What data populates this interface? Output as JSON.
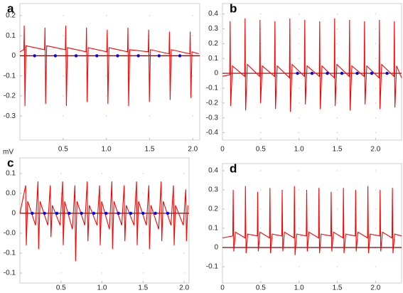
{
  "chart_data": [
    {
      "type": "line",
      "panel": "a",
      "xlim": [
        0,
        2.08
      ],
      "ylim": [
        -0.42,
        0.26
      ],
      "xticks": [
        0.5,
        {
          "value": 1,
          "label": "1.0"
        },
        1.5,
        {
          "value": 2,
          "label": "2.0"
        }
      ],
      "yticks": [
        0.2,
        0.1,
        0,
        -0.1,
        -0.2,
        -0.3
      ],
      "series": [
        {
          "style": "line",
          "color": "#ff0000",
          "x": [
            0,
            0.045,
            0.05,
            0.058,
            0.07,
            0.285,
            0.29,
            0.298,
            0.31,
            0.525,
            0.53,
            0.538,
            0.55,
            0.765,
            0.77,
            0.778,
            0.79,
            1.005,
            1.01,
            1.018,
            1.03,
            1.245,
            1.25,
            1.258,
            1.27,
            1.485,
            1.49,
            1.498,
            1.51,
            1.725,
            1.73,
            1.738,
            1.75,
            1.965,
            1.97,
            1.978,
            1.99,
            2.07
          ],
          "values": [
            0.02,
            0.03,
            0.15,
            -0.25,
            0.05,
            0.03,
            0.14,
            -0.24,
            0.05,
            0.03,
            0.15,
            -0.25,
            0.04,
            0.02,
            0.14,
            -0.23,
            0.04,
            0.02,
            0.13,
            -0.24,
            0.04,
            0.02,
            0.14,
            -0.25,
            0.03,
            0.02,
            0.13,
            -0.23,
            0.03,
            0.01,
            0.12,
            -0.22,
            0.03,
            0.01,
            0.12,
            -0.21,
            0.02,
            0.01
          ]
        },
        {
          "style": "dots",
          "color": "#0000ff",
          "x": [
            0.17,
            0.41,
            0.65,
            0.89,
            1.13,
            1.37,
            1.61,
            1.85
          ],
          "values": [
            0,
            0,
            0,
            0,
            0,
            0,
            0,
            0
          ]
        }
      ]
    },
    {
      "type": "line",
      "panel": "b",
      "xlim": [
        0,
        2.34
      ],
      "ylim": [
        -0.45,
        0.47
      ],
      "xticks": [
        0,
        0.5,
        {
          "value": 1,
          "label": "1.0"
        },
        1.5,
        {
          "value": 2,
          "label": "2.0"
        }
      ],
      "yticks": [
        0.4,
        0.3,
        0.2,
        0.1,
        0,
        -0.1,
        -0.2,
        -0.3,
        -0.4
      ],
      "series": [
        {
          "style": "line",
          "color": "#ff0000",
          "x": [
            0,
            0.095,
            0.1,
            0.108,
            0.13,
            0.29,
            0.295,
            0.303,
            0.325,
            0.485,
            0.49,
            0.498,
            0.52,
            0.68,
            0.685,
            0.693,
            0.715,
            0.875,
            0.88,
            0.888,
            0.91,
            1.07,
            1.075,
            1.083,
            1.105,
            1.265,
            1.27,
            1.278,
            1.3,
            1.46,
            1.465,
            1.473,
            1.495,
            1.655,
            1.66,
            1.668,
            1.69,
            1.85,
            1.855,
            1.863,
            1.885,
            2.045,
            2.05,
            2.058,
            2.08,
            2.24,
            2.245,
            2.253,
            2.275,
            2.34
          ],
          "values": [
            -0.02,
            -0.01,
            0.35,
            -0.22,
            0.05,
            -0.02,
            0.37,
            -0.25,
            0.06,
            -0.02,
            0.36,
            -0.2,
            0.05,
            -0.02,
            0.35,
            -0.24,
            0.05,
            -0.03,
            0.37,
            -0.26,
            0.06,
            -0.02,
            0.36,
            -0.21,
            0.05,
            -0.02,
            0.35,
            -0.24,
            0.05,
            -0.03,
            0.37,
            -0.22,
            0.06,
            -0.02,
            0.36,
            -0.25,
            0.05,
            -0.02,
            0.35,
            -0.21,
            0.05,
            -0.03,
            0.36,
            -0.24,
            0.06,
            -0.02,
            0.35,
            -0.23,
            0.05,
            -0.03
          ]
        },
        {
          "style": "dots",
          "color": "#0000ff",
          "x": [
            0.98,
            1.17,
            1.37,
            1.56,
            1.76,
            1.95,
            2.15
          ],
          "values": [
            0,
            0,
            0,
            0,
            0,
            0,
            0
          ]
        }
      ]
    },
    {
      "type": "line",
      "panel": "c",
      "y_label": "mV",
      "xlim": [
        0,
        2.06
      ],
      "ylim": [
        -0.175,
        0.139
      ],
      "xticks": [
        0.5,
        {
          "value": 1,
          "label": "1.0"
        },
        1.5,
        {
          "value": 2,
          "label": "2.0"
        }
      ],
      "yticks": [
        0.1,
        {
          "value": 0.05,
          "label": "0.0"
        },
        0,
        {
          "value": -0.05,
          "label": "-0.0"
        },
        -0.1,
        {
          "value": -0.15,
          "label": "-0.1"
        }
      ],
      "series": [
        {
          "style": "line",
          "color": "#ff0000",
          "x": [
            0,
            0.07,
            0.078,
            0.095,
            0.19,
            0.22,
            0.228,
            0.245,
            0.34,
            0.37,
            0.378,
            0.395,
            0.49,
            0.52,
            0.528,
            0.545,
            0.64,
            0.67,
            0.678,
            0.695,
            0.79,
            0.82,
            0.828,
            0.845,
            0.94,
            0.97,
            0.978,
            0.995,
            1.09,
            1.12,
            1.128,
            1.145,
            1.24,
            1.27,
            1.278,
            1.295,
            1.39,
            1.42,
            1.428,
            1.445,
            1.54,
            1.57,
            1.578,
            1.595,
            1.69,
            1.72,
            1.728,
            1.745,
            1.84,
            1.87,
            1.878,
            1.895,
            1.99,
            2.02,
            2.028,
            2.045
          ],
          "values": [
            0.0,
            0.07,
            -0.08,
            0.03,
            -0.03,
            0.08,
            -0.09,
            0.03,
            -0.03,
            0.07,
            -0.06,
            0.02,
            -0.03,
            0.08,
            -0.08,
            0.03,
            -0.04,
            0.07,
            -0.12,
            0.03,
            -0.03,
            0.08,
            -0.07,
            0.02,
            -0.03,
            0.07,
            -0.08,
            0.03,
            -0.04,
            0.08,
            -0.09,
            0.03,
            -0.03,
            0.07,
            -0.07,
            0.02,
            -0.03,
            0.08,
            -0.08,
            0.03,
            -0.03,
            0.07,
            -0.09,
            0.02,
            -0.04,
            0.08,
            -0.07,
            0.03,
            -0.03,
            0.07,
            -0.08,
            0.02,
            -0.03,
            0.06,
            -0.07,
            0.02
          ]
        },
        {
          "style": "dots",
          "color": "#0000ff",
          "x": [
            0.15,
            0.3,
            0.45,
            0.6,
            0.75,
            0.9,
            1.05,
            1.2,
            1.35,
            1.5,
            1.65,
            1.8
          ],
          "values": [
            0,
            0,
            0,
            0,
            0,
            0,
            0,
            0,
            0,
            0,
            0,
            0
          ]
        }
      ]
    },
    {
      "type": "line",
      "panel": "d",
      "xlim": [
        0,
        2.34
      ],
      "ylim": [
        -0.185,
        0.437
      ],
      "xticks": [
        0,
        0.5,
        {
          "value": 1,
          "label": "1.0"
        },
        1.5,
        {
          "value": 2,
          "label": "2.0"
        }
      ],
      "yticks": [
        0.4,
        0.3,
        0.2,
        0.1,
        0,
        -0.1
      ],
      "series": [
        {
          "style": "line",
          "color": "#ff0000",
          "x": [
            0,
            0.135,
            0.14,
            0.148,
            0.17,
            0.295,
            0.3,
            0.308,
            0.33,
            0.455,
            0.46,
            0.468,
            0.49,
            0.615,
            0.62,
            0.628,
            0.65,
            0.775,
            0.78,
            0.788,
            0.81,
            0.935,
            0.94,
            0.948,
            0.97,
            1.095,
            1.1,
            1.108,
            1.13,
            1.255,
            1.26,
            1.268,
            1.29,
            1.415,
            1.42,
            1.428,
            1.45,
            1.575,
            1.58,
            1.588,
            1.61,
            1.735,
            1.74,
            1.748,
            1.77,
            1.895,
            1.9,
            1.908,
            1.93,
            2.055,
            2.06,
            2.068,
            2.09,
            2.215,
            2.22,
            2.228,
            2.25,
            2.34
          ],
          "values": [
            0.05,
            0.06,
            0.3,
            -0.02,
            0.08,
            0.05,
            0.32,
            -0.03,
            0.07,
            0.06,
            0.29,
            -0.02,
            0.08,
            0.05,
            0.31,
            -0.03,
            0.07,
            0.06,
            0.3,
            -0.02,
            0.08,
            0.05,
            0.32,
            -0.04,
            0.07,
            0.06,
            0.3,
            -0.02,
            0.08,
            0.05,
            0.31,
            -0.03,
            0.07,
            0.06,
            0.29,
            -0.02,
            0.08,
            0.05,
            0.31,
            -0.03,
            0.07,
            0.06,
            0.3,
            -0.02,
            0.08,
            0.05,
            0.32,
            -0.03,
            0.07,
            0.06,
            0.3,
            -0.02,
            0.08,
            0.05,
            0.31,
            -0.03,
            0.07,
            0.06
          ]
        }
      ]
    }
  ]
}
